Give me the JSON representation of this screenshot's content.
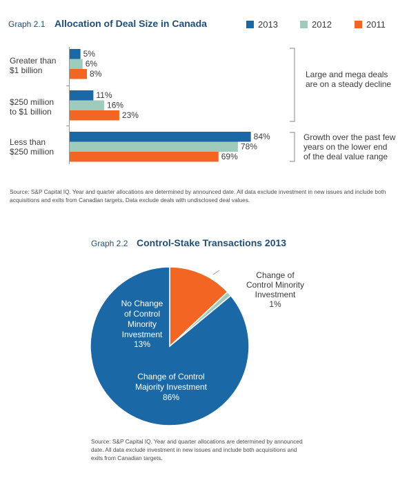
{
  "colors": {
    "s2013": "#1a69a6",
    "s2012": "#9fcbbd",
    "s2011": "#f26522",
    "title": "#1f4e79",
    "pie_majority": "#1a69a6",
    "pie_minority": "#9fcbbd",
    "pie_no_change": "#f26522"
  },
  "chart_data": [
    {
      "type": "bar",
      "orientation": "horizontal",
      "title_prefix": "Graph 2.1",
      "title": "Allocation of Deal Size in Canada",
      "legend_position": "top-right",
      "categories": [
        [
          "Greater than",
          "$1 billion"
        ],
        [
          "$250 million",
          "to $1 billion"
        ],
        [
          "Less than",
          "$250 million"
        ]
      ],
      "series": [
        {
          "name": "2013",
          "values": [
            5,
            11,
            84
          ],
          "labels": [
            "5%",
            "11%",
            "84%"
          ]
        },
        {
          "name": "2012",
          "values": [
            6,
            16,
            78
          ],
          "labels": [
            "6%",
            "16%",
            "78%"
          ]
        },
        {
          "name": "2011",
          "values": [
            8,
            23,
            69
          ],
          "labels": [
            "8%",
            "23%",
            "69%"
          ]
        }
      ],
      "xlim": [
        0,
        100
      ],
      "annotations": [
        {
          "lines": [
            "Large and mega deals",
            "are on a steady decline"
          ]
        },
        {
          "lines": [
            "Growth over the past few",
            "years on the lower end",
            "of the deal value range"
          ]
        }
      ],
      "source": "Source: S&P Capital IQ. Year and quarter allocations are determined by announced date. All data exclude investment in new issues and include both acquisitions and exits from Canadian targets. Data exclude deals with undisclosed deal values."
    },
    {
      "type": "pie",
      "title_prefix": "Graph 2.2",
      "title": "Control-Stake Transactions 2013",
      "slices": [
        {
          "label": [
            "Change of Control",
            "Majority Investment"
          ],
          "value": 86,
          "value_label": "86%"
        },
        {
          "label": [
            "Change of",
            "Control Minority",
            "Investment"
          ],
          "value": 1,
          "value_label": "1%"
        },
        {
          "label": [
            "No Change",
            "of Control",
            "Minority",
            "Investment"
          ],
          "value": 13,
          "value_label": "13%"
        }
      ],
      "source": "Source: S&P Capital IQ. Year and quarter allocations are determined by announced date. All data exclude investment in new issues and include both acquisitions and exits from Canadian targets."
    }
  ]
}
